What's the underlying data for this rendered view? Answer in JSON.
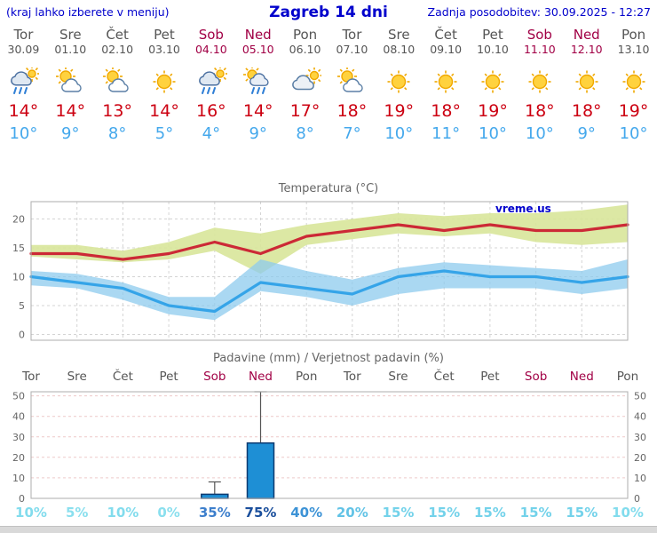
{
  "header": {
    "hint": "(kraj lahko izberete v meniju)",
    "title": "Zagreb 14 dni",
    "updated": "Zadnja posodobitev: 30.09.2025 - 12:27"
  },
  "colors": {
    "header_blue": "#0000cc",
    "weekday_gray": "#555555",
    "weekend_red": "#a10045",
    "tmax_red": "#cc0011",
    "tmin_blue": "#44a8ec"
  },
  "days": [
    {
      "name": "Tor",
      "date": "30.09",
      "weekend": false,
      "icon": "rain",
      "tmax": "14°",
      "tmin": "10°"
    },
    {
      "name": "Sre",
      "date": "01.10",
      "weekend": false,
      "icon": "partly-cloudy",
      "tmax": "14°",
      "tmin": "9°"
    },
    {
      "name": "Čet",
      "date": "02.10",
      "weekend": false,
      "icon": "partly-cloudy",
      "tmax": "13°",
      "tmin": "8°"
    },
    {
      "name": "Pet",
      "date": "03.10",
      "weekend": false,
      "icon": "sunny",
      "tmax": "14°",
      "tmin": "5°"
    },
    {
      "name": "Sob",
      "date": "04.10",
      "weekend": true,
      "icon": "rain",
      "tmax": "16°",
      "tmin": "4°"
    },
    {
      "name": "Ned",
      "date": "05.10",
      "weekend": true,
      "icon": "sun-showers",
      "tmax": "14°",
      "tmin": "9°"
    },
    {
      "name": "Pon",
      "date": "06.10",
      "weekend": false,
      "icon": "cloudy",
      "tmax": "17°",
      "tmin": "8°"
    },
    {
      "name": "Tor",
      "date": "07.10",
      "weekend": false,
      "icon": "partly-cloudy",
      "tmax": "18°",
      "tmin": "7°"
    },
    {
      "name": "Sre",
      "date": "08.10",
      "weekend": false,
      "icon": "sunny",
      "tmax": "19°",
      "tmin": "10°"
    },
    {
      "name": "Čet",
      "date": "09.10",
      "weekend": false,
      "icon": "sunny",
      "tmax": "18°",
      "tmin": "11°"
    },
    {
      "name": "Pet",
      "date": "10.10",
      "weekend": false,
      "icon": "sunny",
      "tmax": "19°",
      "tmin": "10°"
    },
    {
      "name": "Sob",
      "date": "11.10",
      "weekend": true,
      "icon": "sunny",
      "tmax": "18°",
      "tmin": "10°"
    },
    {
      "name": "Ned",
      "date": "12.10",
      "weekend": true,
      "icon": "sunny",
      "tmax": "18°",
      "tmin": "9°"
    },
    {
      "name": "Pon",
      "date": "13.10",
      "weekend": false,
      "icon": "sunny",
      "tmax": "19°",
      "tmin": "10°"
    }
  ],
  "chart_data": [
    {
      "type": "line",
      "title": "Temperatura (°C)",
      "watermark": "vreme.us",
      "x_labels": [
        "Tor 30.09",
        "Sre 01.10",
        "Čet 02.10",
        "Pet 03.10",
        "Sob 04.10",
        "Ned 05.10",
        "Pon 06.10",
        "Tor 07.10",
        "Sre 08.10",
        "Čet 09.10",
        "Pet 10.10",
        "Sob 11.10",
        "Ned 12.10",
        "Pon 13.10"
      ],
      "ylim": [
        -1,
        23
      ],
      "yticks": [
        0,
        5,
        10,
        15,
        20
      ],
      "series": [
        {
          "name": "max-temperature",
          "color": "#cc2936",
          "values": [
            14,
            14,
            13,
            14,
            16,
            14,
            17,
            18,
            19,
            18,
            19,
            18,
            18,
            19
          ]
        },
        {
          "name": "min-temperature",
          "color": "#35a4e8",
          "values": [
            10,
            9,
            8,
            5,
            4,
            9,
            8,
            7,
            10,
            11,
            10,
            10,
            9,
            10
          ]
        }
      ],
      "bands": [
        {
          "name": "max-temp-range",
          "color": "#d8e59a",
          "opacity": 0.9,
          "upper": [
            15.5,
            15.5,
            14.5,
            16,
            18.5,
            17.5,
            19,
            20,
            21,
            20.5,
            21,
            21,
            21.5,
            22.5
          ],
          "lower": [
            13.5,
            13,
            12.5,
            13,
            14.5,
            10.5,
            15.5,
            16.5,
            17.5,
            17,
            17.5,
            16,
            15.5,
            16
          ]
        },
        {
          "name": "min-temp-range",
          "color": "#8ecbee",
          "opacity": 0.75,
          "upper": [
            11,
            10.5,
            9,
            6.5,
            6.5,
            13,
            11,
            9.5,
            11.5,
            12.5,
            12,
            11.5,
            11,
            13
          ],
          "lower": [
            8.5,
            8,
            6,
            3.5,
            2.5,
            7.5,
            6.5,
            5,
            7,
            8,
            8,
            8,
            7,
            8
          ]
        }
      ]
    },
    {
      "type": "bar",
      "title": "Padavine (mm) / Verjetnost padavin (%)",
      "categories": [
        "Tor",
        "Sre",
        "Čet",
        "Pet",
        "Sob",
        "Ned",
        "Pon",
        "Tor",
        "Sre",
        "Čet",
        "Pet",
        "Sob",
        "Ned",
        "Pon"
      ],
      "values": [
        0,
        0,
        0,
        0,
        2,
        27,
        0,
        0,
        0,
        0,
        0,
        0,
        0,
        0
      ],
      "whisker_max": [
        0,
        0,
        0,
        0,
        8,
        52,
        0,
        0,
        0,
        0,
        0,
        0,
        0,
        0
      ],
      "probabilities": [
        "10%",
        "5%",
        "10%",
        "0%",
        "35%",
        "75%",
        "40%",
        "20%",
        "15%",
        "15%",
        "15%",
        "15%",
        "15%",
        "10%"
      ],
      "prob_colors": [
        "#82dced",
        "#8adfee",
        "#82dced",
        "#8adfee",
        "#3d7fcc",
        "#1b4f9c",
        "#3d93d6",
        "#62c3e6",
        "#73d2ea",
        "#73d2ea",
        "#73d2ea",
        "#73d2ea",
        "#73d2ea",
        "#82dced"
      ],
      "ylim": [
        0,
        52
      ],
      "yticks": [
        0,
        10,
        20,
        30,
        40,
        50
      ],
      "bar_color": "#1e8fd5",
      "bar_border": "#0d3a70"
    }
  ]
}
